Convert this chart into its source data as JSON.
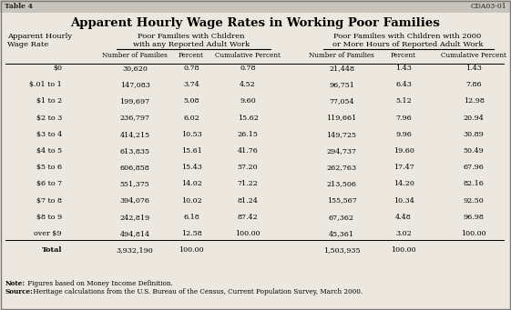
{
  "title": "Apparent Hourly Wage Rates in Working Poor Families",
  "col_header_left_1": "Poor Families with Children",
  "col_header_left_2": "with any Reported Adult Work",
  "col_header_right_1": "Poor Families with Children with 2000",
  "col_header_right_2": "or More Hours of Reported Adult Work",
  "row_label_header_1": "Apparent Hourly",
  "row_label_header_2": "Wage Rate",
  "sub_headers": [
    "Number of Families",
    "Percent",
    "Cumulative Percent",
    "Number of Families",
    "Percent",
    "Cumulative Percent"
  ],
  "wage_rates": [
    "$0",
    "$.01 to 1",
    "$1 to 2",
    "$2 to 3",
    "$3 to 4",
    "$4 to 5",
    "$5 to 6",
    "$6 to 7",
    "$7 to 8",
    "$8 to 9",
    "over $9",
    "Total"
  ],
  "left_num_fam": [
    "30,620",
    "147,083",
    "199,697",
    "236,797",
    "414,215",
    "613,835",
    "606,858",
    "551,375",
    "394,076",
    "242,819",
    "494,814",
    "3,932,190"
  ],
  "left_pct": [
    "0.78",
    "3.74",
    "5.08",
    "6.02",
    "10.53",
    "15.61",
    "15.43",
    "14.02",
    "10.02",
    "6.18",
    "12.58",
    "100.00"
  ],
  "left_cum_pct": [
    "0.78",
    "4.52",
    "9.60",
    "15.62",
    "26.15",
    "41.76",
    "57.20",
    "71.22",
    "81.24",
    "87.42",
    "100.00",
    ""
  ],
  "right_num_fam": [
    "21,448",
    "96,751",
    "77,054",
    "119,661",
    "149,725",
    "294,737",
    "262,763",
    "213,506",
    "155,567",
    "67,362",
    "45,361",
    "1,503,935"
  ],
  "right_pct": [
    "1.43",
    "6.43",
    "5.12",
    "7.96",
    "9.96",
    "19.60",
    "17.47",
    "14.20",
    "10.34",
    "4.48",
    "3.02",
    "100.00"
  ],
  "right_cum_pct": [
    "1.43",
    "7.86",
    "12.98",
    "20.94",
    "30.89",
    "50.49",
    "67.96",
    "82.16",
    "92.50",
    "96.98",
    "100.00",
    ""
  ],
  "note_label": "Note:",
  "note_text": " Figures based on Money Income Definition.",
  "source_label": "Source:",
  "source_text": " Heritage calculations from the U.S. Bureau of the Census, Current Population Survey, March 2000.",
  "bg_color": "#ede8df",
  "titlebar_color": "#c8c3bb",
  "border_color": "#7a7a7a",
  "title_bar_text_color": "#222222",
  "table_font": "DejaVu Serif",
  "title_font": "DejaVu Serif"
}
